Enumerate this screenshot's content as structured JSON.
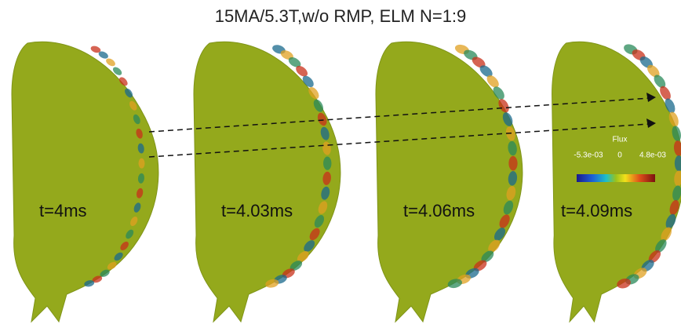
{
  "title": "15MA/5.3T,w/o  RMP,  ELM N=1:9",
  "panels": [
    {
      "label": "t=4ms"
    },
    {
      "label": "t=4.03ms"
    },
    {
      "label": "t=4.06ms"
    },
    {
      "label": "t=4.09ms"
    }
  ],
  "colorbar": {
    "title": "Flux",
    "labels": [
      "-5.3e-03",
      "0",
      "4.8e-03"
    ]
  }
}
